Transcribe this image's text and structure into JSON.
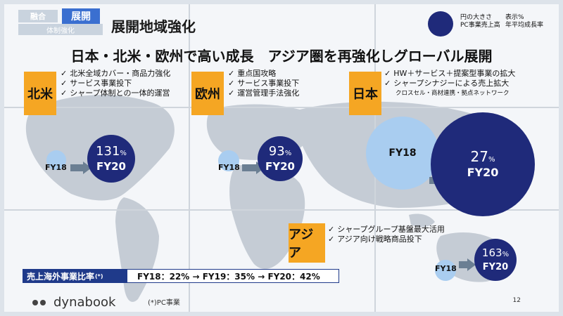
{
  "nav": {
    "tab_inactive": "融合",
    "tab_active": "展開",
    "tab_sub": "体制強化"
  },
  "title": "展開地域強化",
  "headline": "日本・北米・欧州で高い成長　アジア圏を再強化しグローバル展開",
  "legend": {
    "circle_text_1": "円の大きさ",
    "circle_text_2": "PC事業売上高",
    "display_text_1": "表示%",
    "display_text_2": "年平均成長率"
  },
  "regions": {
    "north_america": {
      "tag": "北米",
      "bullets": [
        "北米全域カバー・商品力強化",
        "サービス事業投下",
        "シャープ体制との一体的運営"
      ],
      "from_label": "FY18",
      "to_label": "FY20",
      "growth_value": "131",
      "growth_unit": "%"
    },
    "europe": {
      "tag": "欧州",
      "bullets": [
        "重点国攻略",
        "サービス事業投下",
        "運営管理手法強化"
      ],
      "from_label": "FY18",
      "to_label": "FY20",
      "growth_value": "93",
      "growth_unit": "%"
    },
    "japan": {
      "tag": "日本",
      "bullets": [
        "HW＋サービス＋提案型事業の拡大",
        "シャープシナジーによる売上拡大"
      ],
      "sub_note": "クロスセル・商材連携・拠点ネットワーク",
      "from_label": "FY18",
      "to_label": "FY20",
      "growth_value": "27",
      "growth_unit": "%"
    },
    "asia": {
      "tag": "アジア",
      "bullets": [
        "シャープグループ基盤最大活用",
        "アジア向け戦略商品投下"
      ],
      "from_label": "FY18",
      "to_label": "FY20",
      "growth_value": "163",
      "growth_unit": "%"
    }
  },
  "overseas_ratio": {
    "label": "売上海外事業比率",
    "label_mark": "(*)",
    "text": "FY18：22% → FY19：35% → FY20：42%"
  },
  "footer": {
    "logo": "dynabook",
    "footnote": "(*)PC事業",
    "page_number": "12"
  },
  "colors": {
    "accent_orange": "#f5a623",
    "navy": "#1f2a7a",
    "light_blue": "#a9cdf0",
    "nav_blue": "#3a6fd0"
  }
}
